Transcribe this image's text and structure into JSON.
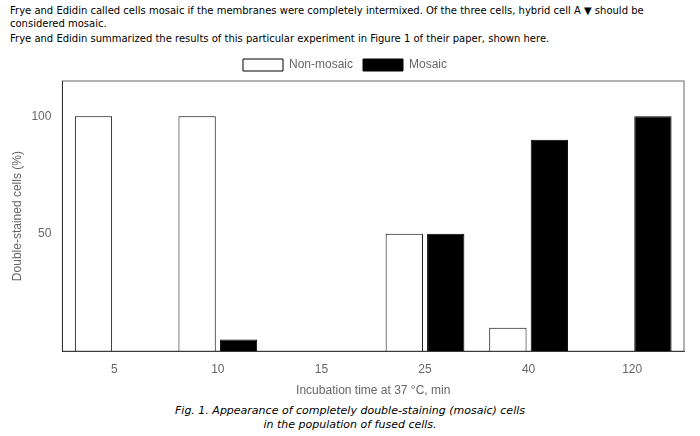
{
  "chart_data": {
    "type": "bar",
    "annotations": [
      "Frye and Edidin called cells mosaic if the membranes were completely intermixed. Of the three cells,  hybrid cell A ▼  should be considered mosaic.",
      "Frye and Edidin summarized the results of this particular experiment in Figure 1 of their paper, shown here."
    ],
    "caption": [
      "Fig. 1.  Appearance of completely double-staining (mosaic) cells",
      "in the population of fused cells."
    ],
    "x_label": "Incubation time at 37 °C, min",
    "y_label": "Double-stained cells (%)",
    "categories": [
      "5",
      "10",
      "15",
      "25",
      "40",
      "120"
    ],
    "series": [
      {
        "name": "Non-mosaic",
        "color": "white",
        "values": [
          100,
          100,
          0,
          50,
          10,
          0
        ]
      },
      {
        "name": "Mosaic",
        "color": "black",
        "values": [
          0,
          5,
          0,
          50,
          90,
          100
        ]
      }
    ],
    "ylim": [
      0,
      115
    ],
    "yticks": [
      50,
      100
    ],
    "grid": false,
    "legend": "top"
  }
}
